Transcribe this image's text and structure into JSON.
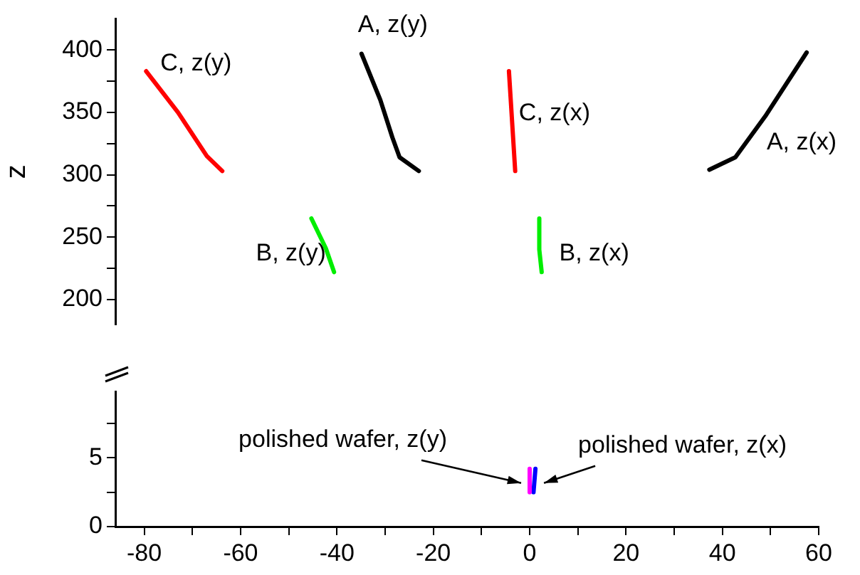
{
  "chart_data": [
    {
      "type": "line",
      "ylabel": "z",
      "xlim": [
        -86,
        60
      ],
      "ylim": [
        180,
        425
      ],
      "yticks": [
        200,
        {
          "value": 225,
          "label": null
        },
        250,
        {
          "value": 275,
          "label": null
        },
        300,
        {
          "value": 325,
          "label": null
        },
        350,
        {
          "value": 375,
          "label": null
        },
        400
      ],
      "tick_labels": "y",
      "grid": false,
      "marker": "none",
      "line_style": "solid",
      "series": [
        {
          "name": "C, z(y)",
          "color": "#ff0000",
          "x": [
            -79.6,
            -73,
            -67,
            -63.8
          ],
          "values": [
            383,
            350,
            315,
            303
          ]
        },
        {
          "name": "A, z(y)",
          "color": "#000000",
          "x": [
            -34.9,
            -31,
            -28.5,
            -27,
            -23
          ],
          "values": [
            397,
            360,
            330,
            314,
            303
          ]
        },
        {
          "name": "B, z(y)",
          "color": "#00ee00",
          "x": [
            -45.3,
            -42.3,
            -40.6
          ],
          "values": [
            265,
            241,
            222
          ]
        },
        {
          "name": "C, z(x)",
          "color": "#ff0000",
          "x": [
            -4.3,
            -3
          ],
          "values": [
            383,
            303
          ]
        },
        {
          "name": "B, z(x)",
          "color": "#00ee00",
          "x": [
            2,
            2,
            2.5
          ],
          "values": [
            265,
            240,
            222
          ]
        },
        {
          "name": "A, z(x)",
          "color": "#000000",
          "x": [
            37.3,
            42.7,
            49.1,
            57.5
          ],
          "values": [
            304,
            314,
            348,
            398
          ]
        }
      ]
    },
    {
      "type": "line",
      "xlim": [
        -86,
        60
      ],
      "xticks": [
        -80,
        {
          "value": -70,
          "label": null
        },
        -60,
        {
          "value": -50,
          "label": null
        },
        -40,
        {
          "value": -30,
          "label": null
        },
        -20,
        {
          "value": -10,
          "label": null
        },
        0,
        {
          "value": 10,
          "label": null
        },
        20,
        {
          "value": 30,
          "label": null
        },
        40,
        {
          "value": 50,
          "label": null
        },
        60
      ],
      "ylim": [
        0,
        9.8
      ],
      "yticks": [
        0,
        {
          "value": 2.5,
          "label": null
        },
        5,
        {
          "value": 7.5,
          "label": null
        }
      ],
      "grid": false,
      "marker": "none",
      "line_style": "solid",
      "series": [
        {
          "name": "polished wafer, z(y)",
          "color": "#ff00ff",
          "x": [
            0,
            0
          ],
          "values": [
            4.2,
            2.5
          ]
        },
        {
          "name": "polished wafer, z(x)",
          "color": "#0000ff",
          "x": [
            1.2,
            0.8
          ],
          "values": [
            4.2,
            2.5
          ]
        }
      ]
    }
  ]
}
